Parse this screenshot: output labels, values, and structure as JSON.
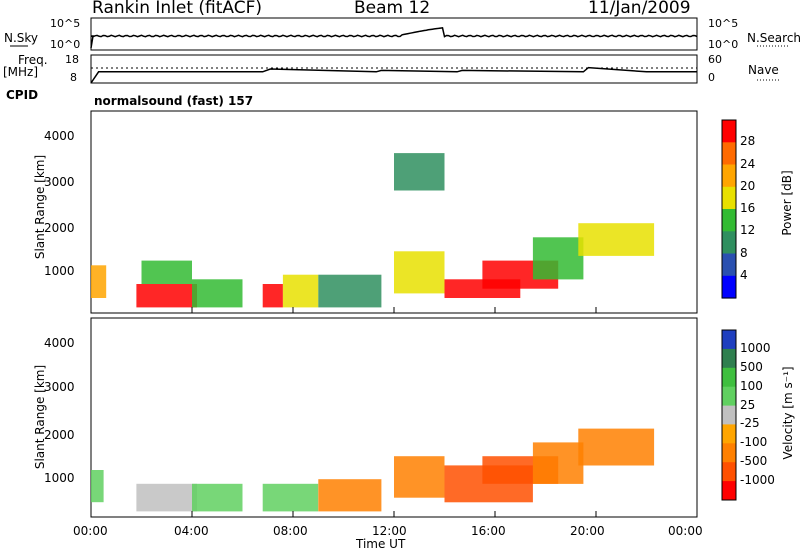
{
  "header": {
    "station": "Rankin Inlet (fitACF)",
    "beam": "Beam 12",
    "date": "11/Jan/2009"
  },
  "summary": {
    "nsky_label": "N.Sky",
    "nsky_ticks": [
      "10^5",
      "10^0"
    ],
    "nsearch_ticks": [
      "10^5",
      "10^0"
    ],
    "nsearch_label": "N.Search",
    "freq_label": "Freq.",
    "freq_unit": "[MHz]",
    "freq_ticks": [
      "18",
      "8"
    ],
    "nave_ticks": [
      "60",
      "0"
    ],
    "nave_label": "Nave",
    "cpid_label": "CPID",
    "cpid_value": "normalsound (fast) 157"
  },
  "axes": {
    "ylabel": "Slant Range [km]",
    "yticks": [
      "4000",
      "3000",
      "2000",
      "1000"
    ],
    "xticks": [
      "00:00",
      "04:00",
      "08:00",
      "12:00",
      "16:00",
      "20:00",
      "00:00"
    ],
    "xlabel": "Time UT"
  },
  "power_scale": {
    "label": "Power [dB]",
    "ticks": [
      "28",
      "24",
      "20",
      "16",
      "12",
      "8",
      "4"
    ],
    "colors": [
      "#ff0000",
      "#ff6a00",
      "#ffa500",
      "#e8e000",
      "#33bb33",
      "#2f8f5f",
      "#2a50b0",
      "#0000ff"
    ]
  },
  "velocity_scale": {
    "label": "Velocity [m s⁻¹]",
    "ticks": [
      "1000",
      "500",
      "100",
      "25",
      "-25",
      "-100",
      "-500",
      "-1000"
    ],
    "colors": [
      "#1f3fbf",
      "#2f7f4f",
      "#3fbf3f",
      "#60d060",
      "#c0c0c0",
      "#ffa500",
      "#ff8000",
      "#ff5000",
      "#ff0000"
    ]
  },
  "chart_data": [
    {
      "type": "line",
      "title": "N.Sky / N.Search",
      "x_range_hours": [
        0,
        24
      ],
      "y_scale": "log",
      "ylim": [
        1,
        100000
      ],
      "note": "sky noise roughly constant near 10^2 with spikes near 12:00-14:00"
    },
    {
      "type": "line",
      "title": "Freq. [MHz] / Nave",
      "x_range_hours": [
        0,
        24
      ],
      "series": [
        {
          "name": "Freq",
          "x": [
            0,
            0.3,
            6.8,
            7.1,
            11.3,
            11.5,
            14.5,
            14.7,
            19.5,
            19.7,
            22,
            24
          ],
          "y": [
            8,
            12,
            12,
            13,
            12,
            12.5,
            12,
            12.5,
            12,
            13.5,
            12,
            12
          ]
        }
      ],
      "ylim": [
        8,
        18
      ]
    },
    {
      "type": "heatmap",
      "title": "Power [dB]",
      "x_range_hours": [
        0,
        24
      ],
      "ylim": [
        180,
        4500
      ],
      "ylabel": "Slant Range [km]",
      "zlim": [
        0,
        30
      ],
      "regions": [
        {
          "t0": 0.0,
          "t1": 0.6,
          "r0": 500,
          "r1": 1200,
          "power": 20
        },
        {
          "t0": 1.8,
          "t1": 4.2,
          "r0": 300,
          "r1": 800,
          "power": 26
        },
        {
          "t0": 2.0,
          "t1": 4.0,
          "r0": 800,
          "r1": 1300,
          "power": 10
        },
        {
          "t0": 4.0,
          "t1": 6.0,
          "r0": 300,
          "r1": 900,
          "power": 12
        },
        {
          "t0": 6.8,
          "t1": 7.6,
          "r0": 300,
          "r1": 800,
          "power": 26
        },
        {
          "t0": 7.6,
          "t1": 9.0,
          "r0": 300,
          "r1": 1000,
          "power": 14
        },
        {
          "t0": 9.0,
          "t1": 11.5,
          "r0": 300,
          "r1": 1000,
          "power": 8
        },
        {
          "t0": 12.0,
          "t1": 14.0,
          "r0": 600,
          "r1": 1500,
          "power": 14
        },
        {
          "t0": 14.0,
          "t1": 17.0,
          "r0": 500,
          "r1": 900,
          "power": 26
        },
        {
          "t0": 15.5,
          "t1": 18.5,
          "r0": 700,
          "r1": 1300,
          "power": 27
        },
        {
          "t0": 17.5,
          "t1": 19.5,
          "r0": 900,
          "r1": 1800,
          "power": 12
        },
        {
          "t0": 19.3,
          "t1": 22.3,
          "r0": 1400,
          "r1": 2100,
          "power": 14
        },
        {
          "t0": 12.0,
          "t1": 14.0,
          "r0": 2800,
          "r1": 3600,
          "power": 8
        }
      ]
    },
    {
      "type": "heatmap",
      "title": "Velocity [m s^-1]",
      "x_range_hours": [
        0,
        24
      ],
      "ylim": [
        180,
        4500
      ],
      "ylabel": "Slant Range [km]",
      "zlim": [
        -1000,
        1000
      ],
      "regions": [
        {
          "t0": 0.0,
          "t1": 0.5,
          "r0": 500,
          "r1": 1200,
          "velocity": 30
        },
        {
          "t0": 1.8,
          "t1": 4.2,
          "r0": 300,
          "r1": 900,
          "velocity": 0
        },
        {
          "t0": 4.0,
          "t1": 6.0,
          "r0": 300,
          "r1": 900,
          "velocity": 50
        },
        {
          "t0": 6.8,
          "t1": 9.0,
          "r0": 300,
          "r1": 900,
          "velocity": 30
        },
        {
          "t0": 9.0,
          "t1": 11.5,
          "r0": 300,
          "r1": 1000,
          "velocity": -150
        },
        {
          "t0": 12.0,
          "t1": 14.0,
          "r0": 600,
          "r1": 1500,
          "velocity": -300
        },
        {
          "t0": 14.0,
          "t1": 17.5,
          "r0": 500,
          "r1": 1300,
          "velocity": -400
        },
        {
          "t0": 15.5,
          "t1": 18.5,
          "r0": 900,
          "r1": 1500,
          "velocity": -600
        },
        {
          "t0": 17.5,
          "t1": 19.5,
          "r0": 900,
          "r1": 1800,
          "velocity": -300
        },
        {
          "t0": 19.3,
          "t1": 22.3,
          "r0": 1300,
          "r1": 2100,
          "velocity": -300
        }
      ]
    }
  ]
}
